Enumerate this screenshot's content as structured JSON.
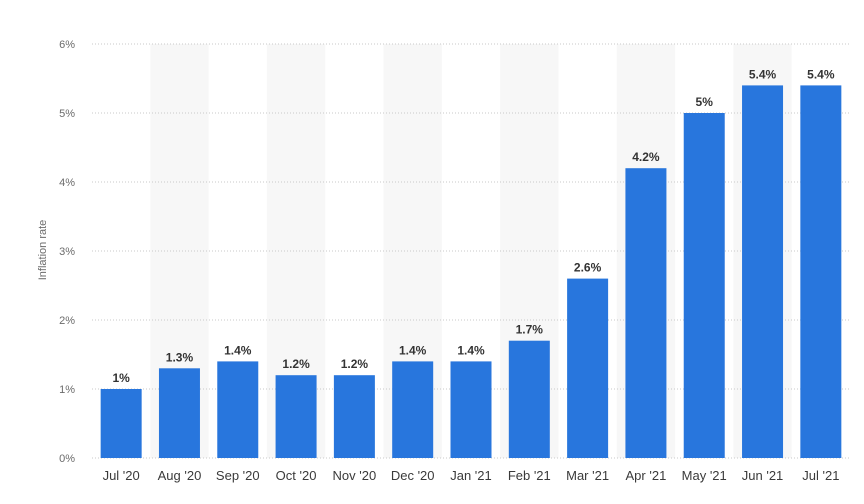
{
  "chart_data": {
    "type": "bar",
    "title": "",
    "xlabel": "",
    "ylabel": "Inflation rate",
    "categories": [
      "Jul '20",
      "Aug '20",
      "Sep '20",
      "Oct '20",
      "Nov '20",
      "Dec '20",
      "Jan '21",
      "Feb '21",
      "Mar '21",
      "Apr '21",
      "May '21",
      "Jun '21",
      "Jul '21"
    ],
    "values": [
      1,
      1.3,
      1.4,
      1.2,
      1.2,
      1.4,
      1.4,
      1.7,
      2.6,
      4.2,
      5,
      5.4,
      5.4
    ],
    "data_labels": [
      "1%",
      "1.3%",
      "1.4%",
      "1.2%",
      "1.2%",
      "1.4%",
      "1.4%",
      "1.7%",
      "2.6%",
      "4.2%",
      "5%",
      "5.4%",
      "5.4%"
    ],
    "yticks": [
      0,
      1,
      2,
      3,
      4,
      5,
      6
    ],
    "ytick_labels": [
      "0%",
      "1%",
      "2%",
      "3%",
      "4%",
      "5%",
      "6%"
    ],
    "ylim": [
      0,
      6
    ],
    "grid": true,
    "legend": "none",
    "colors": {
      "bar": "#2876dd",
      "band": "#f7f7f7",
      "grid": "#c8c8c8"
    }
  }
}
